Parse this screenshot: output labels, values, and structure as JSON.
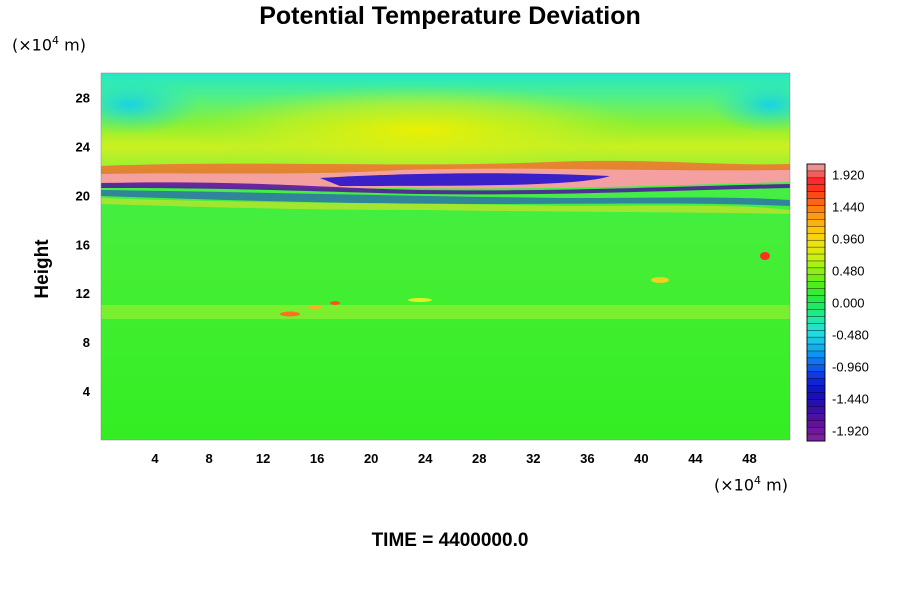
{
  "chart_data": {
    "type": "heatmap",
    "title": "Potential Temperature Deviation",
    "ylabel": "Height",
    "x_unit_label": {
      "prefix": "(×10",
      "exp": "4",
      "suffix": " m)"
    },
    "y_unit_label": {
      "prefix": "(×10",
      "exp": "4",
      "suffix": " m)"
    },
    "x_ticks": [
      4,
      8,
      12,
      16,
      20,
      24,
      28,
      32,
      36,
      40,
      44,
      48
    ],
    "y_ticks": [
      4,
      8,
      12,
      16,
      20,
      24,
      28
    ],
    "xlim": [
      0,
      51
    ],
    "ylim": [
      0,
      30
    ],
    "colorbar": {
      "labels": [
        "1.920",
        "1.440",
        "0.960",
        "0.480",
        "0.000",
        "-0.480",
        "-0.960",
        "-1.440",
        "-1.920"
      ],
      "range": [
        -2.08,
        2.08
      ]
    },
    "bands": [
      {
        "y": 20.5,
        "value": 2.0
      },
      {
        "y": 21.0,
        "value": -1.9
      },
      {
        "y": 19.8,
        "value": -1.7
      },
      {
        "y": 22.0,
        "value": 1.0
      },
      {
        "y": 24.0,
        "value": 0.45
      },
      {
        "y": 27.0,
        "value": -0.6
      },
      {
        "y": 10.5,
        "value": 0.5
      }
    ],
    "footer": "TIME = 4400000.0"
  }
}
